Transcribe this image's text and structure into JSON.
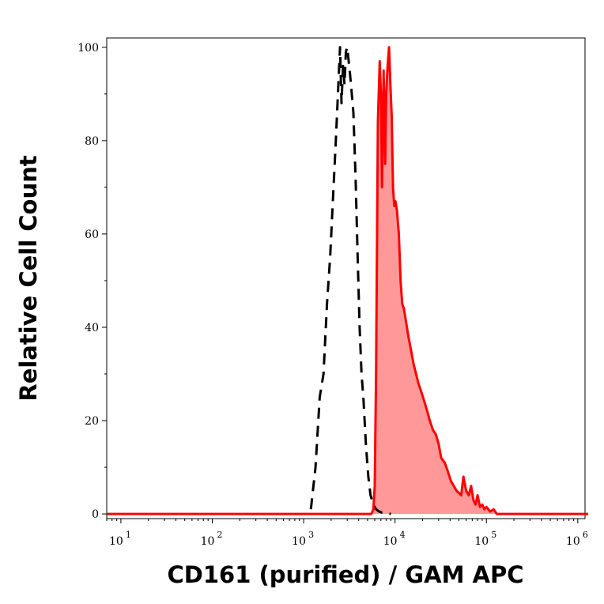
{
  "chart_data": {
    "type": "area",
    "title": "",
    "xlabel": "CD161 (purified) / GAM APC",
    "ylabel": "Relative Cell Count",
    "xscale": "log",
    "xlim": [
      7,
      1200000
    ],
    "ylim": [
      -1,
      102
    ],
    "x_ticks": [
      {
        "base": "10",
        "exp": "1",
        "value": 10
      },
      {
        "base": "10",
        "exp": "2",
        "value": 100
      },
      {
        "base": "10",
        "exp": "3",
        "value": 1000
      },
      {
        "base": "10",
        "exp": "4",
        "value": 10000
      },
      {
        "base": "10",
        "exp": "5",
        "value": 100000
      },
      {
        "base": "10",
        "exp": "6",
        "value": 1000000
      }
    ],
    "y_ticks": [
      "0",
      "20",
      "40",
      "60",
      "80",
      "100"
    ],
    "grid": false,
    "legend": "none",
    "series": [
      {
        "style": "dashed",
        "color": "#000000",
        "x": [
          1200,
          1350,
          1500,
          1650,
          1800,
          1950,
          2100,
          2250,
          2400,
          2500,
          2600,
          2700,
          2800,
          2900,
          3000,
          3150,
          3300,
          3500,
          3700,
          3900,
          4100,
          4300,
          4500,
          4800,
          5100,
          5400,
          5800,
          6200,
          6700,
          7200,
          8000,
          9000
        ],
        "y": [
          1,
          10,
          25,
          30,
          45,
          55,
          68,
          80,
          92,
          100,
          88,
          96,
          92,
          99,
          100,
          96,
          92,
          86,
          72,
          55,
          40,
          30,
          25,
          15,
          8,
          4,
          2,
          1,
          0.5,
          0.3,
          0.2,
          0
        ]
      },
      {
        "style": "solid-filled",
        "color": "#ff0000",
        "fill": "#ff9999",
        "x": [
          1,
          5500,
          5800,
          6000,
          6200,
          6500,
          6800,
          7000,
          7200,
          7500,
          7800,
          8000,
          8300,
          8600,
          8900,
          9200,
          9500,
          9800,
          10100,
          10500,
          11000,
          11500,
          12000,
          12500,
          13000,
          14000,
          15000,
          16000,
          17000,
          18000,
          19500,
          21000,
          22500,
          24000,
          26000,
          28000,
          30000,
          32000,
          35000,
          38000,
          41000,
          44000,
          47000,
          50000,
          53000,
          56000,
          60000,
          64000,
          68000,
          72000,
          76000,
          80000,
          85000,
          90000,
          95000,
          100000,
          110000,
          120000,
          130000,
          1300000
        ],
        "y": [
          0,
          0,
          1,
          6,
          30,
          84,
          97,
          90,
          70,
          95,
          75,
          90,
          96,
          100,
          92,
          85,
          70,
          66,
          67,
          65,
          60,
          50,
          45,
          44,
          42,
          38,
          35,
          32,
          30,
          28,
          26,
          24,
          22,
          20,
          18,
          17,
          15,
          12,
          11,
          9,
          7,
          6,
          5,
          4.5,
          4,
          8,
          5,
          4,
          6,
          3,
          2,
          4,
          1.5,
          2,
          1,
          1.5,
          0.5,
          1,
          0,
          0
        ]
      }
    ]
  }
}
